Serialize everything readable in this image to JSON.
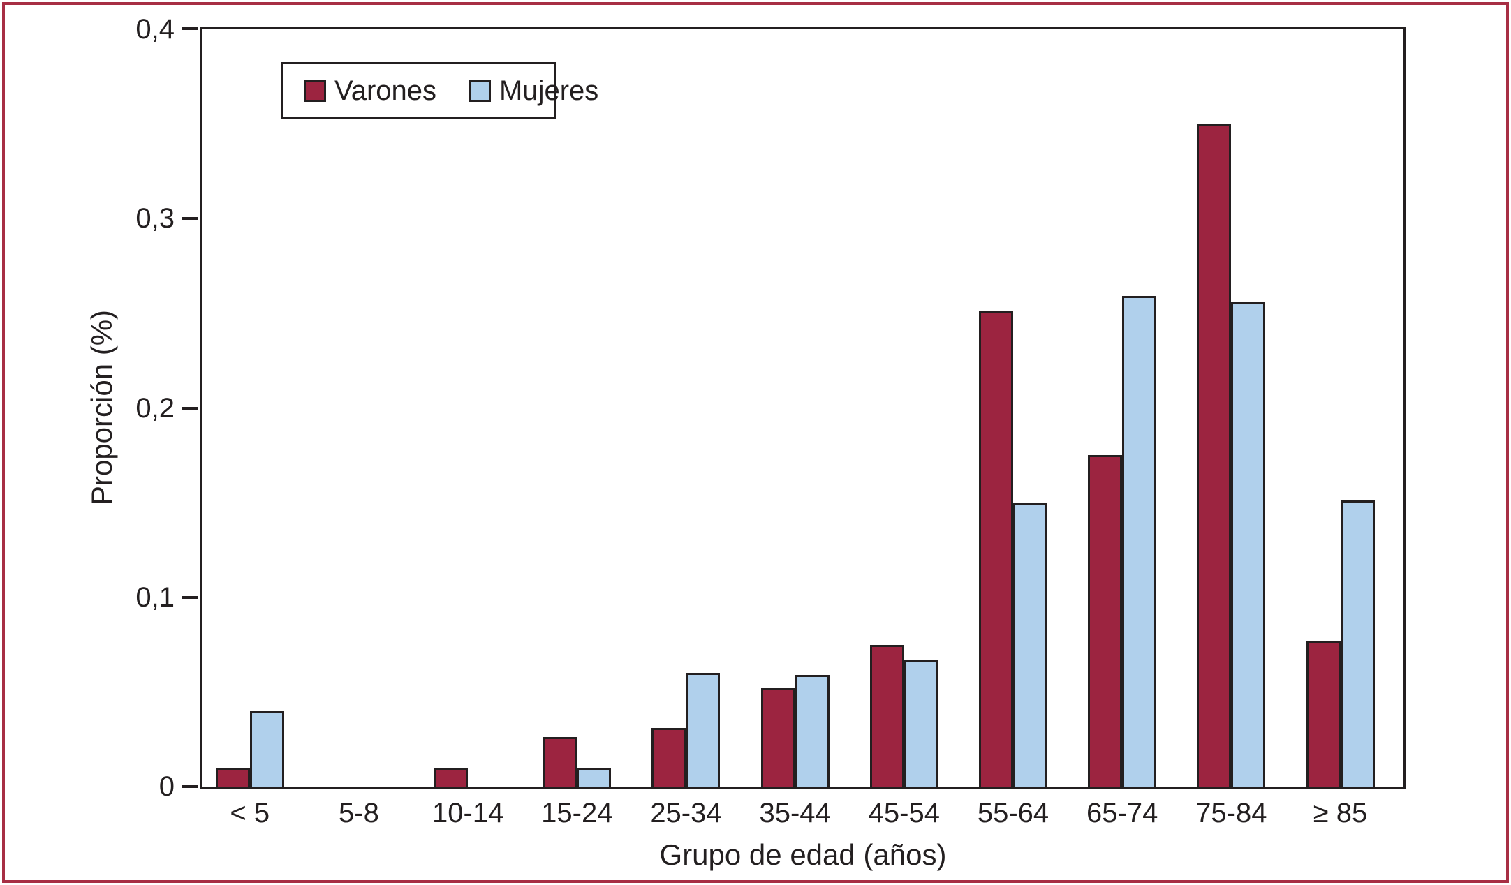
{
  "figure": {
    "background": "#ffffff",
    "outer_border_color": "#a72e44",
    "frame_color": "#231f20"
  },
  "legend": {
    "position": "top-left-inside"
  },
  "chart_data": {
    "type": "bar",
    "title": "",
    "categories": [
      "< 5",
      "5-8",
      "10-14",
      "15-24",
      "25-34",
      "35-44",
      "45-54",
      "55-64",
      "65-74",
      "75-84",
      "≥ 85"
    ],
    "series": [
      {
        "name": "Varones",
        "color": "#9c2440",
        "values": [
          0.01,
          0,
          0.01,
          0.026,
          0.031,
          0.052,
          0.075,
          0.251,
          0.175,
          0.35,
          0.077
        ]
      },
      {
        "name": "Mujeres",
        "color": "#b0d0ec",
        "values": [
          0.04,
          0,
          0,
          0.01,
          0.06,
          0.059,
          0.067,
          0.15,
          0.259,
          0.256,
          0.151
        ]
      }
    ],
    "xlabel": "Grupo de edad (años)",
    "ylabel": "Proporción (%)",
    "ylim": [
      0,
      0.4
    ],
    "yticks": [
      "0",
      "0,1",
      "0,2",
      "0,3",
      "0,4"
    ],
    "decimal_separator": ",",
    "grid": false,
    "legend_position": "top-left-inside"
  }
}
